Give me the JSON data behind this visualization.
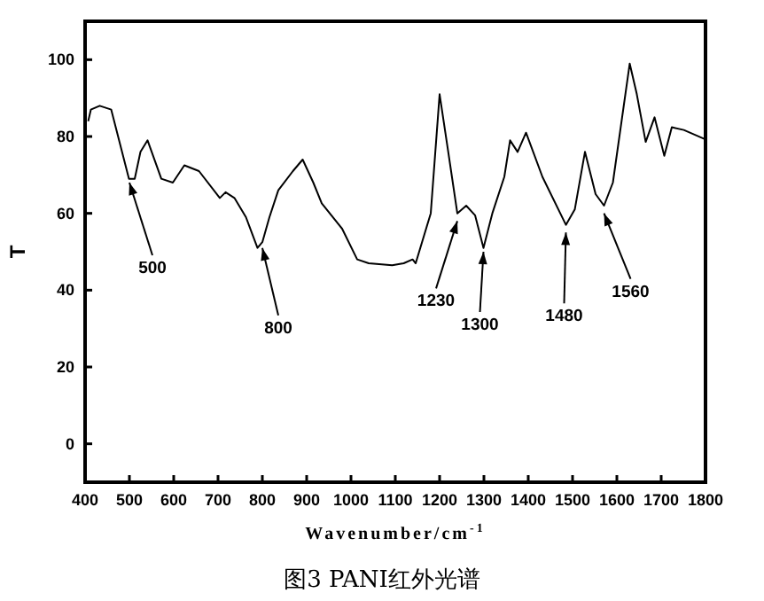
{
  "chart_data": {
    "type": "line",
    "title": "图3 PANI红外光谱",
    "xlabel": "Wavenumber/cm$^{-1}$",
    "ylabel": "T",
    "xlim": [
      400,
      1800
    ],
    "ylim": [
      -10,
      110
    ],
    "xticks": [
      400,
      500,
      600,
      700,
      800,
      900,
      1000,
      1100,
      1200,
      1300,
      1400,
      1500,
      1600,
      1700,
      1800
    ],
    "yticks": [
      0,
      20,
      40,
      60,
      80,
      100
    ],
    "grid": false,
    "marker": "none",
    "line_style": "solid",
    "series": [
      {
        "color": "#000000",
        "x": [
          407,
          413,
          433,
          459,
          499,
          512,
          525,
          541,
          572,
          598,
          624,
          657,
          704,
          717,
          737,
          763,
          789,
          800,
          816,
          836,
          869,
          891,
          915,
          934,
          980,
          1014,
          1040,
          1093,
          1119,
          1139,
          1146,
          1180,
          1200,
          1220,
          1240,
          1260,
          1280,
          1299,
          1319,
          1346,
          1359,
          1376,
          1395,
          1432,
          1485,
          1505,
          1528,
          1552,
          1571,
          1591,
          1629,
          1645,
          1665,
          1685,
          1707,
          1724,
          1751,
          1797
        ],
        "values": [
          84,
          87,
          88,
          87,
          69,
          69,
          76,
          79,
          69,
          68,
          72.5,
          71,
          64,
          65.5,
          64,
          59,
          51,
          52.5,
          59,
          66,
          71,
          74,
          68,
          62.6,
          56,
          48,
          47,
          46.5,
          47,
          48,
          47,
          60,
          91,
          75.6,
          60,
          62,
          59.5,
          51,
          60,
          69.5,
          79,
          76,
          81,
          69.5,
          57,
          61,
          76,
          65,
          62,
          68,
          99,
          91,
          78.6,
          85,
          75,
          82.4,
          81.7,
          79.4
        ]
      }
    ],
    "annotations": [
      {
        "text": "500",
        "x": 500,
        "y": 68
      },
      {
        "text": "800",
        "x": 800,
        "y": 51
      },
      {
        "text": "1230",
        "x": 1240,
        "y": 58
      },
      {
        "text": "1300",
        "x": 1299,
        "y": 50
      },
      {
        "text": "1480",
        "x": 1485,
        "y": 55
      },
      {
        "text": "1560",
        "x": 1571,
        "y": 60
      }
    ]
  }
}
